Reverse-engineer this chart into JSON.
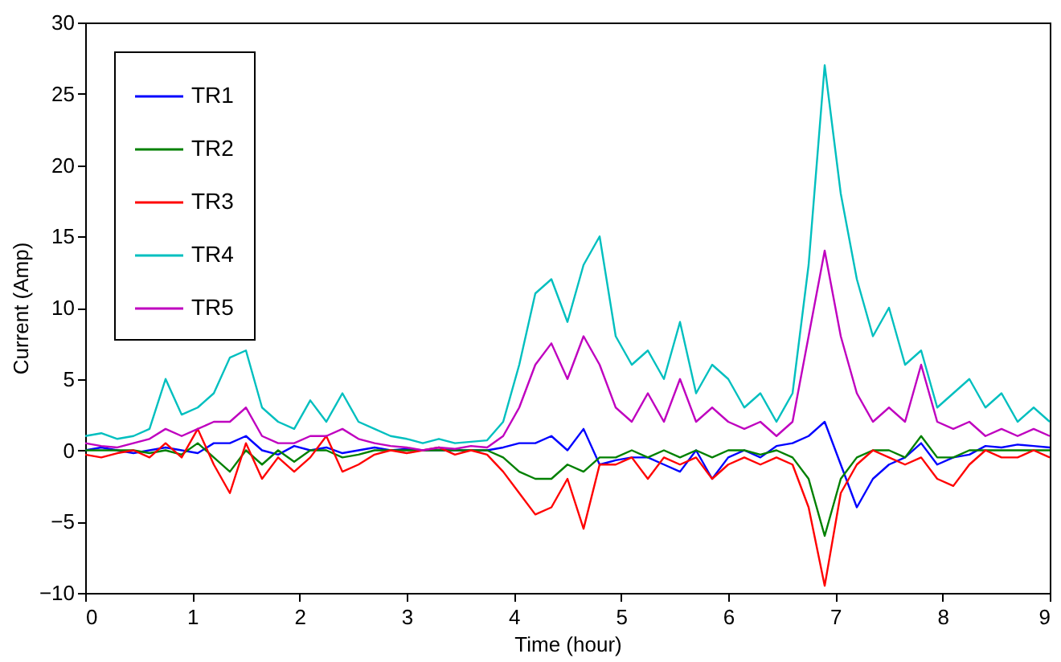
{
  "chart_data": {
    "type": "line",
    "xlabel": "Time (hour)",
    "ylabel": "Current (Amp)",
    "x": [
      0,
      0.15,
      0.3,
      0.45,
      0.6,
      0.75,
      0.9,
      1.05,
      1.2,
      1.35,
      1.5,
      1.65,
      1.8,
      1.95,
      2.1,
      2.25,
      2.4,
      2.55,
      2.7,
      2.85,
      3.0,
      3.15,
      3.3,
      3.45,
      3.6,
      3.75,
      3.9,
      4.05,
      4.2,
      4.35,
      4.5,
      4.65,
      4.8,
      4.95,
      5.1,
      5.25,
      5.4,
      5.55,
      5.7,
      5.85,
      6.0,
      6.15,
      6.3,
      6.45,
      6.6,
      6.75,
      6.9,
      7.05,
      7.2,
      7.35,
      7.5,
      7.65,
      7.8,
      7.95,
      8.1,
      8.25,
      8.4,
      8.55,
      8.7,
      8.85,
      9.0
    ],
    "series": [
      {
        "name": "TR1",
        "color": "#0000ff",
        "values": [
          0,
          0.2,
          0,
          -0.2,
          0,
          0.2,
          0,
          -0.2,
          0.5,
          0.5,
          1,
          0,
          -0.3,
          0.3,
          0,
          0.2,
          -0.2,
          0,
          0.2,
          0,
          0.1,
          0,
          0,
          0,
          0,
          0,
          0.2,
          0.5,
          0.5,
          1,
          0,
          1.5,
          -1,
          -0.7,
          -0.5,
          -0.5,
          -1,
          -1.5,
          0,
          -2,
          -0.5,
          0,
          -0.5,
          0.3,
          0.5,
          1,
          2,
          -1,
          -4,
          -2,
          -1,
          -0.5,
          0.5,
          -1,
          -0.5,
          -0.3,
          0.3,
          0.2,
          0.4,
          0.3,
          0.2
        ]
      },
      {
        "name": "TR2",
        "color": "#008000",
        "values": [
          0,
          0,
          0,
          0,
          -0.2,
          0,
          -0.3,
          0.5,
          -0.5,
          -1.5,
          0,
          -1,
          0,
          -0.8,
          0,
          0,
          -0.5,
          -0.3,
          0,
          0,
          0,
          0,
          0,
          0,
          0,
          0,
          -0.5,
          -1.5,
          -2,
          -2,
          -1,
          -1.5,
          -0.5,
          -0.5,
          0,
          -0.5,
          0,
          -0.5,
          0,
          -0.5,
          0,
          0,
          -0.3,
          0,
          -0.5,
          -2,
          -6,
          -2,
          -0.5,
          0,
          0,
          -0.5,
          1,
          -0.5,
          -0.5,
          0,
          0,
          0,
          0,
          0,
          0
        ]
      },
      {
        "name": "TR3",
        "color": "#ff0000",
        "values": [
          -0.3,
          -0.5,
          -0.2,
          0,
          -0.5,
          0.5,
          -0.5,
          1.5,
          -1,
          -3,
          0.5,
          -2,
          -0.5,
          -1.5,
          -0.5,
          1,
          -1.5,
          -1,
          -0.3,
          0,
          -0.2,
          0,
          0.2,
          -0.3,
          0,
          -0.3,
          -1.5,
          -3,
          -4.5,
          -4,
          -2,
          -5.5,
          -1,
          -1,
          -0.5,
          -2,
          -0.5,
          -1,
          -0.5,
          -2,
          -1,
          -0.5,
          -1,
          -0.5,
          -1,
          -4,
          -9.5,
          -3,
          -1,
          0,
          -0.5,
          -1,
          -0.5,
          -2,
          -2.5,
          -1,
          0,
          -0.5,
          -0.5,
          0,
          -0.5
        ]
      },
      {
        "name": "TR4",
        "color": "#00bfbf",
        "values": [
          1,
          1.2,
          0.8,
          1,
          1.5,
          5,
          2.5,
          3,
          4,
          6.5,
          7,
          3,
          2,
          1.5,
          3.5,
          2,
          4,
          2,
          1.5,
          1,
          0.8,
          0.5,
          0.8,
          0.5,
          0.6,
          0.7,
          2,
          6,
          11,
          12,
          9,
          13,
          15,
          8,
          6,
          7,
          5,
          9,
          4,
          6,
          5,
          3,
          4,
          2,
          4,
          13,
          27,
          18,
          12,
          8,
          10,
          6,
          7,
          3,
          4,
          5,
          3,
          4,
          2,
          3,
          2
        ]
      },
      {
        "name": "TR5",
        "color": "#bf00bf",
        "values": [
          0.5,
          0.3,
          0.2,
          0.5,
          0.8,
          1.5,
          1,
          1.5,
          2,
          2,
          3,
          1,
          0.5,
          0.5,
          1,
          1,
          1.5,
          0.8,
          0.5,
          0.3,
          0.2,
          0,
          0.2,
          0.1,
          0.3,
          0.2,
          1,
          3,
          6,
          7.5,
          5,
          8,
          6,
          3,
          2,
          4,
          2,
          5,
          2,
          3,
          2,
          1.5,
          2,
          1,
          2,
          8,
          14,
          8,
          4,
          2,
          3,
          2,
          6,
          2,
          1.5,
          2,
          1,
          1.5,
          1,
          1.5,
          1
        ]
      }
    ],
    "xlim": [
      0,
      9
    ],
    "xticks": [
      0,
      1,
      2,
      3,
      4,
      5,
      6,
      7,
      8,
      9
    ],
    "ylim": [
      -10,
      30
    ],
    "yticks": [
      -10,
      -5,
      0,
      5,
      10,
      15,
      20,
      25,
      30
    ],
    "grid": false,
    "legend": "top left",
    "line_style": "solid"
  }
}
